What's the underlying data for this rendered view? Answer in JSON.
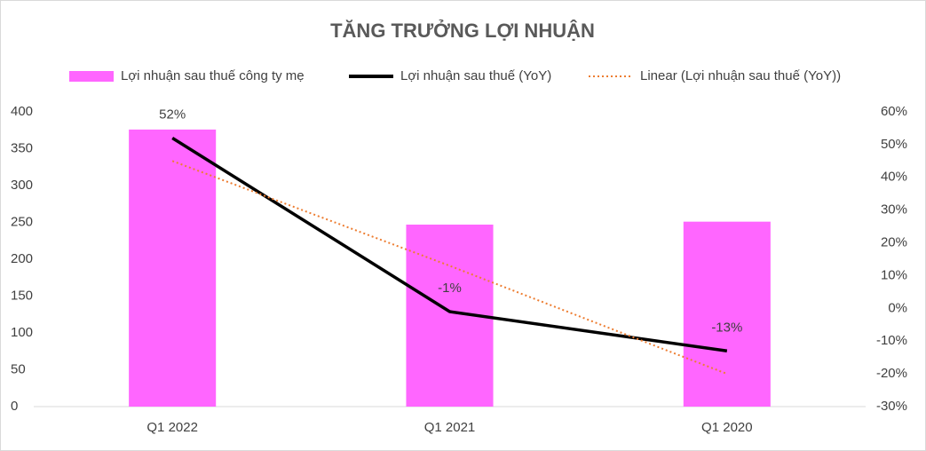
{
  "chart_data": {
    "type": "combo",
    "title": "TĂNG TRƯỞNG LỢI NHUẬN",
    "categories": [
      "Q1 2022",
      "Q1 2021",
      "Q1 2020"
    ],
    "series": [
      {
        "name": "Lợi nhuận sau thuế công ty mẹ",
        "type": "bar",
        "color": "#ff66ff",
        "values": [
          376,
          247,
          251
        ]
      },
      {
        "name": "Lợi nhuận sau thuế (YoY)",
        "type": "line",
        "axis": "y2",
        "color": "#000000",
        "values": [
          52,
          -1,
          -13
        ],
        "value_labels": [
          "52%",
          "-1%",
          "-13%"
        ]
      },
      {
        "name": "Linear (Lợi nhuận sau thuế (YoY))",
        "type": "line",
        "axis": "y2",
        "color": "#ed7d31",
        "dash": "dotted",
        "values": [
          45,
          13,
          -20
        ]
      }
    ],
    "ylim": [
      0,
      400
    ],
    "yticks": [
      0,
      50,
      100,
      150,
      200,
      250,
      300,
      350,
      400
    ],
    "y2lim": [
      -30,
      60
    ],
    "y2ticks": [
      {
        "value": -30,
        "label": "-30%"
      },
      {
        "value": -20,
        "label": "-20%"
      },
      {
        "value": -10,
        "label": "-10%"
      },
      {
        "value": 0,
        "label": "0%"
      },
      {
        "value": 10,
        "label": "10%"
      },
      {
        "value": 20,
        "label": "20%"
      },
      {
        "value": 30,
        "label": "30%"
      },
      {
        "value": 40,
        "label": "40%"
      },
      {
        "value": 50,
        "label": "50%"
      },
      {
        "value": 60,
        "label": "60%"
      }
    ],
    "legend": "top"
  }
}
